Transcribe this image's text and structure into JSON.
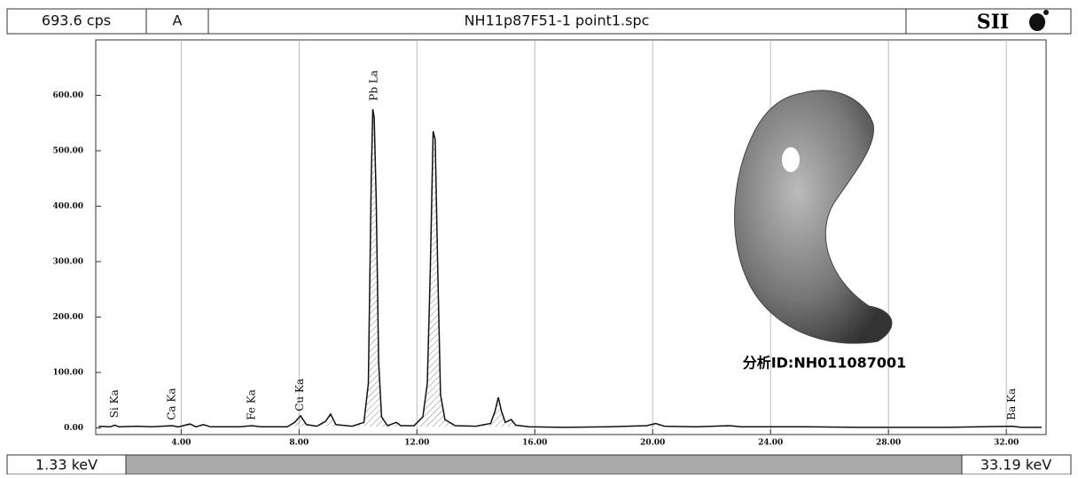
{
  "header": {
    "count_rate": "693.6 cps",
    "mode": "A",
    "file_name": "NH11p87F51-1 point1.spc",
    "brand": "SII"
  },
  "chart_data": {
    "type": "line",
    "x": [
      1.2,
      1.6,
      1.74,
      1.9,
      2.5,
      3.0,
      3.69,
      3.9,
      4.3,
      4.5,
      4.75,
      5.0,
      6.0,
      6.4,
      6.7,
      7.6,
      7.85,
      8.05,
      8.25,
      8.6,
      8.9,
      9.07,
      9.25,
      9.8,
      10.2,
      10.35,
      10.45,
      10.5,
      10.55,
      10.62,
      10.7,
      10.8,
      11.0,
      11.3,
      11.45,
      11.9,
      12.2,
      12.35,
      12.45,
      12.55,
      12.62,
      12.7,
      12.8,
      12.95,
      13.3,
      14.0,
      14.5,
      14.65,
      14.76,
      14.87,
      15.0,
      15.2,
      15.35,
      15.8,
      17,
      18.5,
      19.8,
      20.1,
      20.4,
      21.5,
      22.6,
      23,
      25.2,
      27,
      30,
      32.19,
      32.5,
      33.2
    ],
    "series": [
      {
        "color": "#111111",
        "values": [
          3,
          2,
          5,
          2,
          3,
          2,
          4,
          2,
          7,
          2,
          6,
          2,
          2,
          4,
          2,
          2,
          10,
          22,
          6,
          3,
          12,
          25,
          6,
          3,
          10,
          80,
          450,
          575,
          560,
          410,
          120,
          20,
          4,
          10,
          4,
          4,
          20,
          80,
          280,
          535,
          520,
          300,
          60,
          15,
          4,
          3,
          8,
          30,
          55,
          30,
          10,
          15,
          5,
          2,
          1,
          2,
          4,
          8,
          3,
          2,
          4,
          2,
          2,
          1,
          1,
          3,
          1,
          1
        ]
      }
    ],
    "xlim": [
      1.1,
      33.35
    ],
    "ylim": [
      -12,
      700
    ],
    "xticks": [
      {
        "value": 4,
        "label": "4.00"
      },
      {
        "value": 8,
        "label": "8.00"
      },
      {
        "value": 12,
        "label": "12.00"
      },
      {
        "value": 16,
        "label": "16.00"
      },
      {
        "value": 20,
        "label": "20.00"
      },
      {
        "value": 24,
        "label": "24.00"
      },
      {
        "value": 28,
        "label": "28.00"
      },
      {
        "value": 32,
        "label": "32.00"
      }
    ],
    "yticks": [
      {
        "value": 0,
        "label": "0.00"
      },
      {
        "value": 100,
        "label": "100.00"
      },
      {
        "value": 200,
        "label": "200.00"
      },
      {
        "value": 300,
        "label": "300.00"
      },
      {
        "value": 400,
        "label": "400.00"
      },
      {
        "value": 500,
        "label": "500.00"
      },
      {
        "value": 600,
        "label": "600.00"
      }
    ],
    "grid": "x",
    "annotations": [
      {
        "text": "Si Ka",
        "x": 1.74,
        "y": 18
      },
      {
        "text": "Ca Ka",
        "x": 3.69,
        "y": 14
      },
      {
        "text": "Fe Ka",
        "x": 6.4,
        "y": 14
      },
      {
        "text": "Cu Ka",
        "x": 8.04,
        "y": 30
      },
      {
        "text": "Pb La",
        "x": 10.55,
        "y": 590
      },
      {
        "text": "Ba Ka",
        "x": 32.19,
        "y": 14
      }
    ],
    "sample_id": "分析ID:NH011087001"
  },
  "footer": {
    "range_start": "1.33 keV",
    "range_end": "33.19 keV"
  }
}
